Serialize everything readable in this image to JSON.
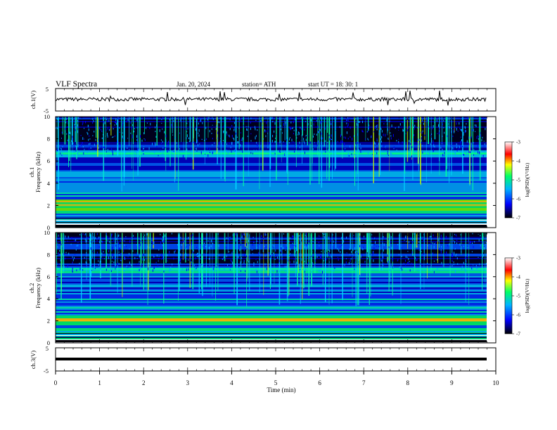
{
  "header": {
    "title": "VLF  Spectra",
    "date": "Jan. 20, 2024",
    "station": "station= ATH",
    "start_ut": "start  UT  =   18: 30: 1"
  },
  "chart_data": [
    {
      "type": "line",
      "ylabel": "ch.1(V)",
      "ylim": [
        -5,
        5
      ],
      "ytick_labels": [
        "5",
        "-5"
      ],
      "note": "small-amplitude noisy waveform around 0 V with occasional spikes"
    },
    {
      "type": "heatmap",
      "ylabel_channel": "ch.1",
      "ylabel": "Frequency  (kHz)",
      "ylim": [
        0,
        10
      ],
      "ytick_labels": [
        "0",
        "2",
        "4",
        "6",
        "8",
        "10"
      ],
      "colorbar": {
        "label": "log(PSD)(V²/Hz)",
        "range": [
          -7,
          -3
        ],
        "tick_labels": [
          "-3",
          "-4",
          "-5",
          "-6",
          "-7"
        ]
      },
      "strong_band_khz": 2.0
    },
    {
      "type": "heatmap",
      "ylabel_channel": "ch.2",
      "ylabel": "Frequency  (kHz)",
      "ylim": [
        0,
        10
      ],
      "ytick_labels": [
        "0",
        "2",
        "4",
        "6",
        "8",
        "10"
      ],
      "colorbar": {
        "label": "log(PSD)(V²/Hz)",
        "range": [
          -7,
          -3
        ],
        "tick_labels": [
          "-3",
          "-4",
          "-5",
          "-6",
          "-7"
        ]
      },
      "strong_band_khz": 2.0
    },
    {
      "type": "line",
      "ylabel": "ch.3(V)",
      "ylim": [
        -5,
        5
      ],
      "ytick_labels": [
        "5",
        "-5"
      ],
      "xlabel": "Time  (min)",
      "xlim": [
        0,
        10
      ],
      "xtick_labels": [
        "0",
        "1",
        "2",
        "3",
        "4",
        "5",
        "6",
        "7",
        "8",
        "9",
        "10"
      ],
      "note": "flat thick trace near -2 V"
    }
  ],
  "colors": {
    "background_dark": "#000033",
    "colormap": [
      "#000000",
      "#0000ff",
      "#00b4ff",
      "#00ff66",
      "#ffff00",
      "#ff0000",
      "#ffffff"
    ]
  }
}
